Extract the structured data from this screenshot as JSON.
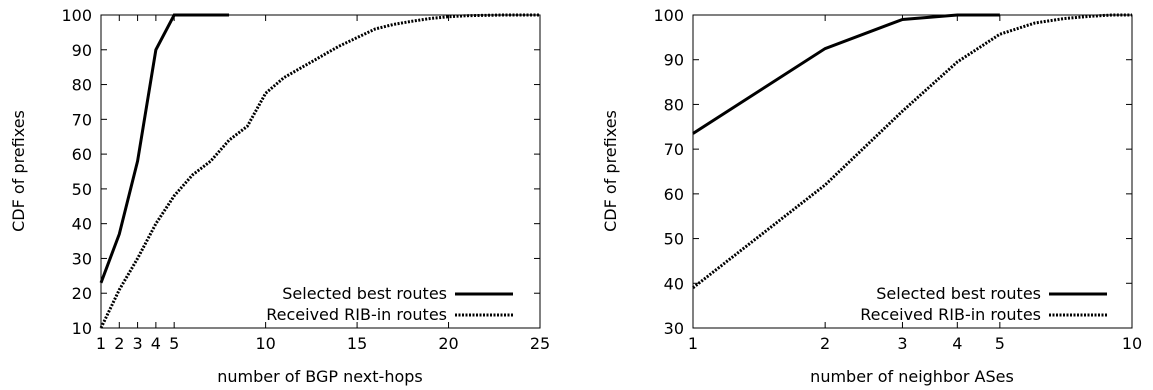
{
  "chart_data": [
    {
      "type": "line",
      "xlabel": "number of BGP next-hops",
      "ylabel": "CDF of prefixes",
      "xlim": [
        1,
        25
      ],
      "ylim": [
        10,
        100
      ],
      "x_ticks": [
        "1",
        "2",
        "3",
        "4",
        "5",
        "10",
        "15",
        "20",
        "25"
      ],
      "y_ticks": [
        "10",
        "20",
        "30",
        "40",
        "50",
        "60",
        "70",
        "80",
        "90",
        "100"
      ],
      "grid": false,
      "legend_position": "bottom-right",
      "series": [
        {
          "name": "Selected best routes",
          "style": "solid",
          "x": [
            1,
            2,
            3,
            4,
            5,
            6,
            7,
            8
          ],
          "y": [
            23,
            37,
            58,
            90,
            100,
            100,
            100,
            100
          ]
        },
        {
          "name": "Received RIB-in routes",
          "style": "dotted",
          "x": [
            1,
            2,
            3,
            4,
            5,
            6,
            7,
            8,
            9,
            10,
            11,
            12,
            13,
            14,
            15,
            16,
            17,
            18,
            19,
            20,
            21,
            22,
            23,
            24,
            25
          ],
          "y": [
            10,
            21,
            30,
            40,
            48,
            54,
            58,
            64,
            68,
            77.5,
            82,
            85,
            88,
            91,
            93.5,
            96,
            97.3,
            98.2,
            99,
            99.5,
            99.8,
            99.9,
            100,
            100,
            100
          ]
        }
      ]
    },
    {
      "type": "line",
      "xlabel": "number of neighbor ASes",
      "ylabel": "CDF of prefixes",
      "xlim": [
        1,
        10
      ],
      "ylim": [
        30,
        100
      ],
      "x_scale": "log",
      "x_ticks": [
        "1",
        "2",
        "3",
        "4",
        "5",
        "10"
      ],
      "y_ticks": [
        "30",
        "40",
        "50",
        "60",
        "70",
        "80",
        "90",
        "100"
      ],
      "grid": false,
      "legend_position": "bottom-right",
      "series": [
        {
          "name": "Selected best routes",
          "style": "solid",
          "x": [
            1,
            2,
            3,
            4,
            5
          ],
          "y": [
            73.5,
            92.5,
            99,
            100,
            100
          ]
        },
        {
          "name": "Received RIB-in routes",
          "style": "dotted",
          "x": [
            1,
            2,
            3,
            4,
            5,
            6,
            7,
            8,
            9,
            10
          ],
          "y": [
            39,
            62,
            78.5,
            89.5,
            95.7,
            98.2,
            99.2,
            99.7,
            100,
            100
          ]
        }
      ]
    }
  ]
}
